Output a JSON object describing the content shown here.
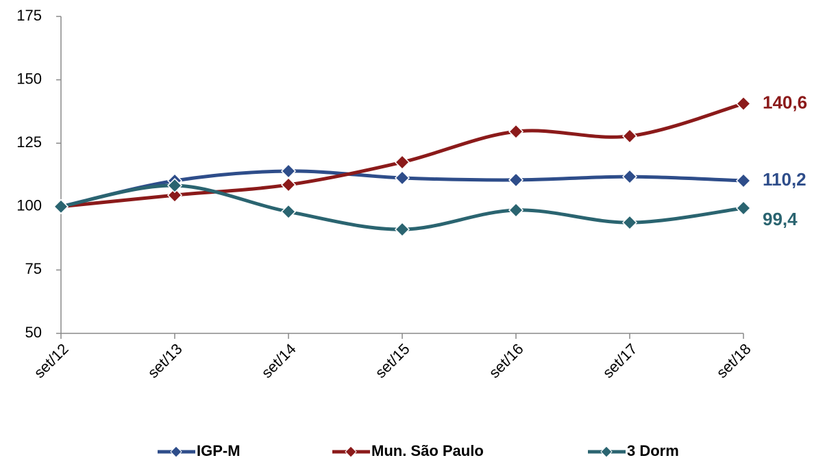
{
  "chart_data": {
    "type": "line",
    "categories": [
      "set/12",
      "set/13",
      "set/14",
      "set/15",
      "set/16",
      "set/17",
      "set/18"
    ],
    "series": [
      {
        "name": "IGP-M",
        "color": "#2e4d8a",
        "values": [
          100,
          110.2,
          114,
          111.3,
          110.5,
          111.8,
          110.2
        ],
        "value_labels": [
          null,
          null,
          null,
          null,
          null,
          null,
          "110,2"
        ]
      },
      {
        "name": "Mun. São Paulo",
        "color": "#8b1a1a",
        "values": [
          100,
          104.5,
          108.6,
          117.5,
          129.6,
          127.8,
          140.6
        ],
        "value_labels": [
          null,
          null,
          null,
          null,
          null,
          null,
          "140,6"
        ]
      },
      {
        "name": "3 Dorm",
        "color": "#2a6470",
        "values": [
          100,
          108.3,
          98,
          91,
          98.6,
          93.7,
          99.4
        ],
        "value_labels": [
          null,
          null,
          null,
          null,
          null,
          null,
          "99,4"
        ]
      }
    ],
    "ylim": [
      50,
      175
    ],
    "yticks": [
      50,
      75,
      100,
      125,
      150,
      175
    ],
    "grid": false,
    "smooth": true,
    "legend": "bottom"
  }
}
